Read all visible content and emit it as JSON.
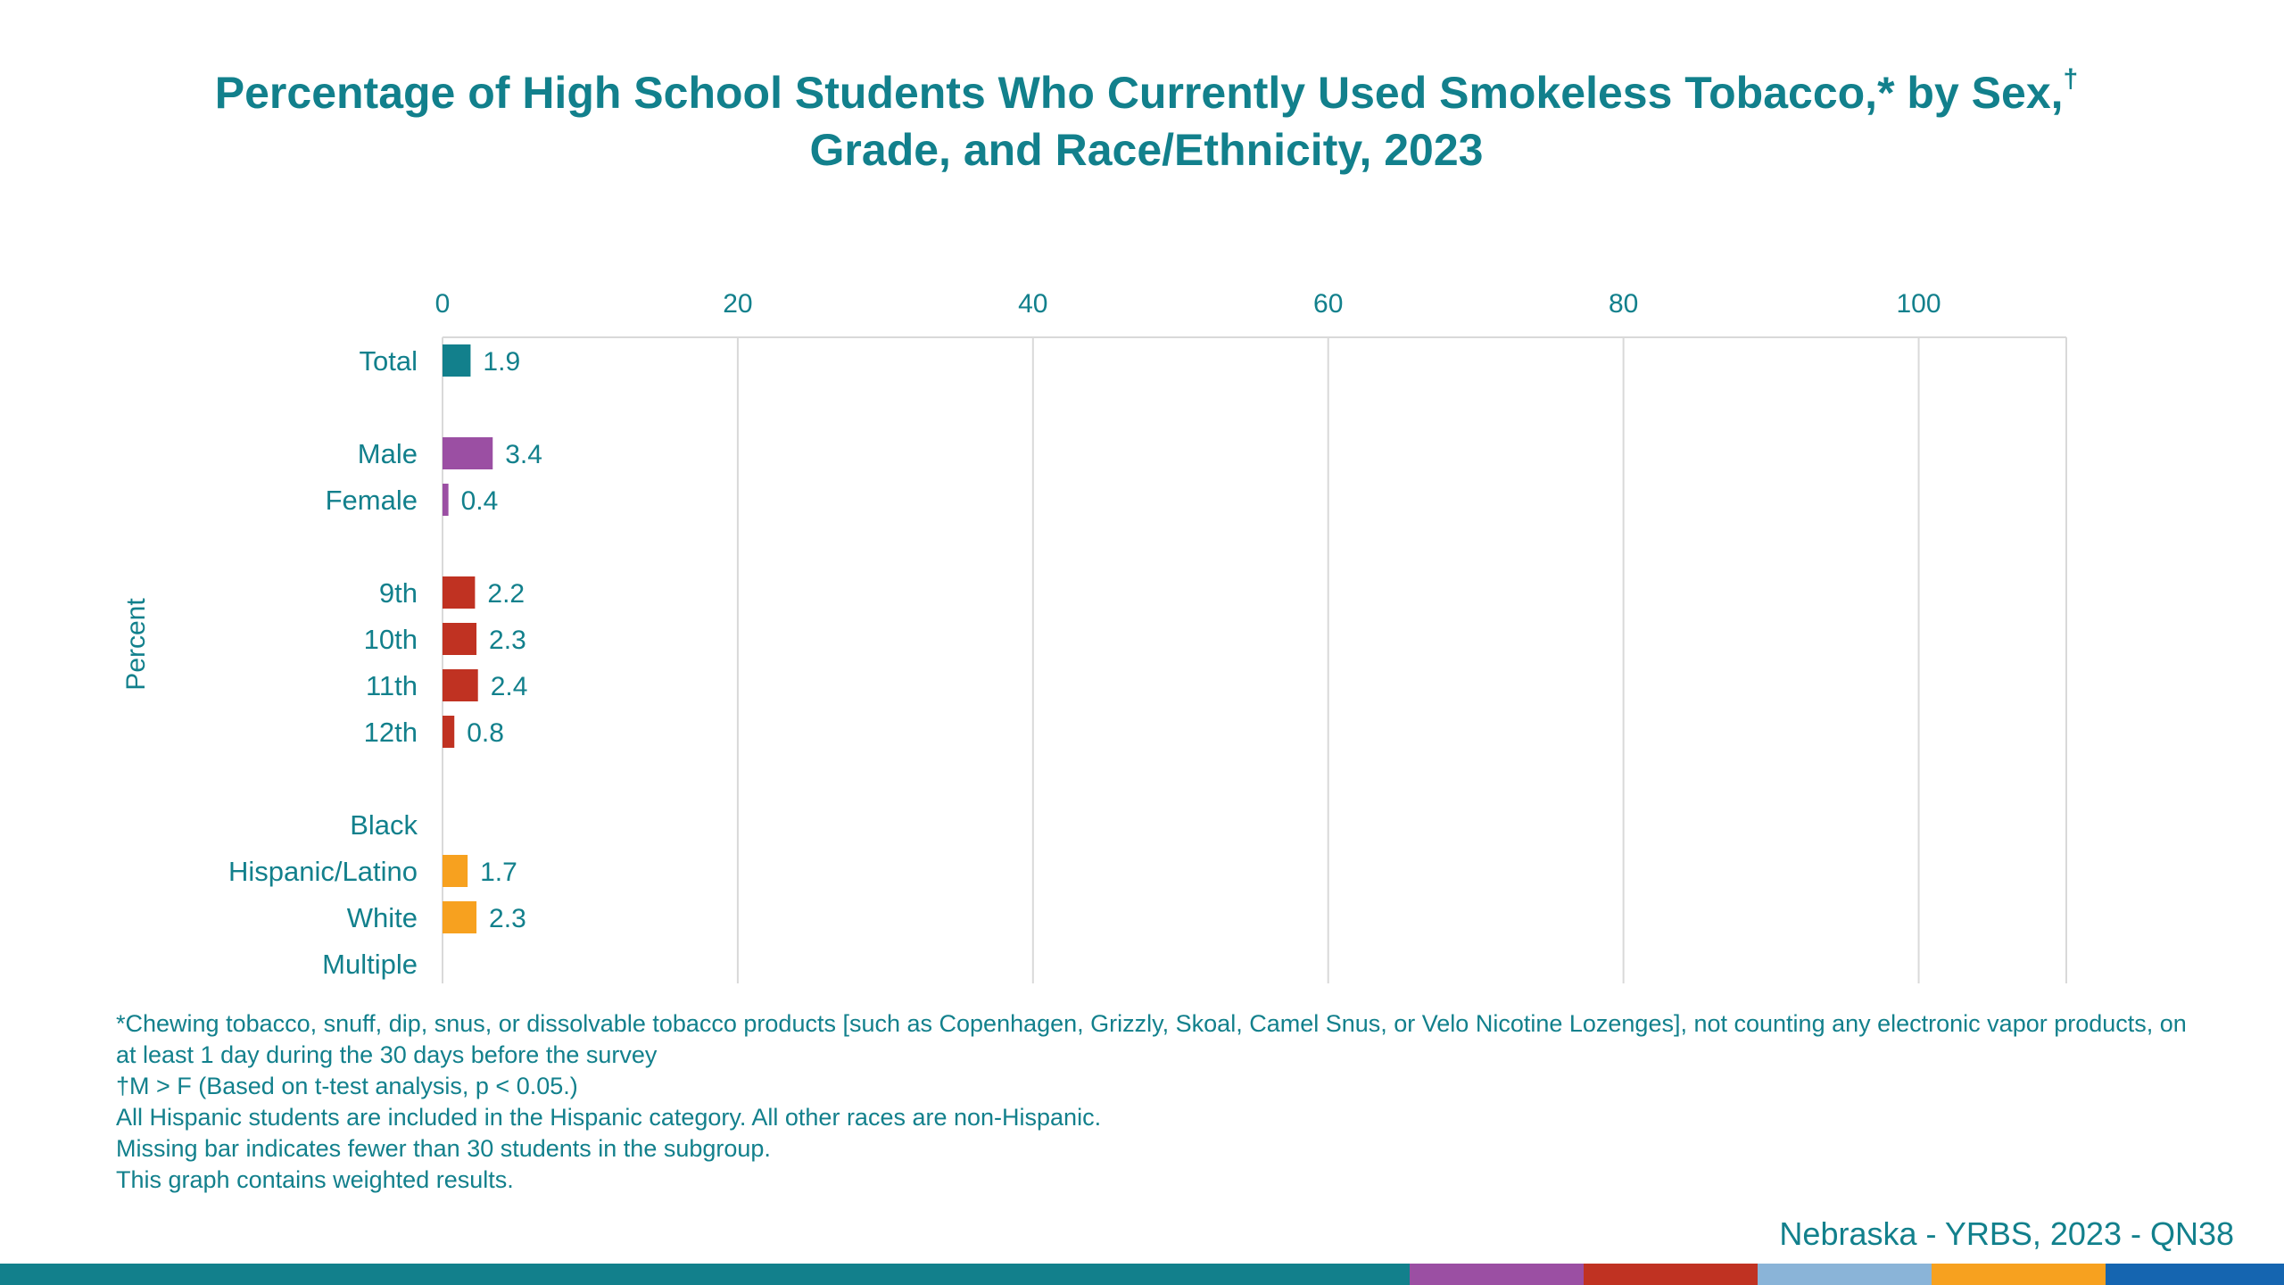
{
  "title_main": "Percentage of High School Students Who Currently Used Smokeless Tobacco,* by Sex,",
  "title_mark": "†",
  "title_line2": "Grade, and Race/Ethnicity, 2023",
  "chart_data": {
    "type": "bar",
    "orientation": "horizontal",
    "title": "Percentage of High School Students Who Currently Used Smokeless Tobacco,* by Sex,† Grade, and Race/Ethnicity, 2023",
    "ylabel": "Percent",
    "xlim": [
      0,
      110
    ],
    "x_ticks": [
      0,
      20,
      40,
      60,
      80,
      100
    ],
    "grid": "vertical",
    "axis_position": "top",
    "categories": [
      "Total",
      "Male",
      "Female",
      "9th",
      "10th",
      "11th",
      "12th",
      "Black",
      "Hispanic/Latino",
      "White",
      "Multiple"
    ],
    "groups": [
      {
        "group": "total",
        "color": "#12808c",
        "items": [
          {
            "label": "Total",
            "value": 1.9,
            "display": "1.9"
          }
        ]
      },
      {
        "group": "sex",
        "color": "#9b4fa3",
        "items": [
          {
            "label": "Male",
            "value": 3.4,
            "display": "3.4"
          },
          {
            "label": "Female",
            "value": 0.4,
            "display": "0.4"
          }
        ]
      },
      {
        "group": "grade",
        "color": "#c03222",
        "items": [
          {
            "label": "9th",
            "value": 2.2,
            "display": "2.2"
          },
          {
            "label": "10th",
            "value": 2.3,
            "display": "2.3"
          },
          {
            "label": "11th",
            "value": 2.4,
            "display": "2.4"
          },
          {
            "label": "12th",
            "value": 0.8,
            "display": "0.8"
          }
        ]
      },
      {
        "group": "race",
        "color": "#f7a11f",
        "items": [
          {
            "label": "Black",
            "value": null,
            "display": ""
          },
          {
            "label": "Hispanic/Latino",
            "value": 1.7,
            "display": "1.7"
          },
          {
            "label": "White",
            "value": 2.3,
            "display": "2.3"
          },
          {
            "label": "Multiple",
            "value": null,
            "display": ""
          }
        ]
      }
    ]
  },
  "footnotes": [
    "*Chewing tobacco, snuff, dip, snus, or dissolvable tobacco products [such as Copenhagen, Grizzly, Skoal, Camel Snus, or Velo Nicotine Lozenges], not counting any electronic vapor products, on at least 1 day during the 30 days before the survey",
    "†M > F (Based on t-test analysis, p < 0.05.)",
    "All Hispanic students are included in the Hispanic category.  All other races are non-Hispanic.",
    "Missing bar indicates fewer than 30 students in the subgroup.",
    "This graph contains weighted results."
  ],
  "source": "Nebraska - YRBS, 2023 - QN38",
  "colors": {
    "text": "#12808c",
    "grid": "#d9d9d9",
    "bottom_bar": [
      "#12808c",
      "#9b4fa3",
      "#c03222",
      "#8ab4d8",
      "#f7a11f",
      "#1565b0"
    ]
  }
}
